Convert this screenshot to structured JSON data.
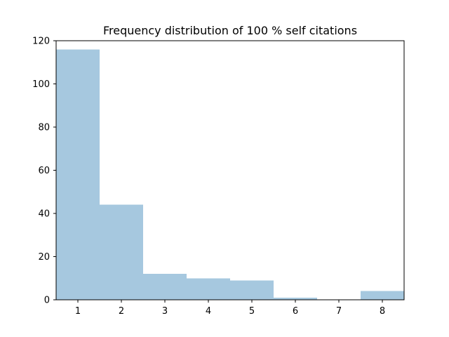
{
  "chart_data": {
    "type": "bar",
    "title": "Frequency distribution of 100 % self citations",
    "xlabel": "",
    "ylabel": "",
    "categories": [
      "1",
      "2",
      "3",
      "4",
      "5",
      "6",
      "7",
      "8"
    ],
    "x": [
      1,
      2,
      3,
      4,
      5,
      6,
      7,
      8
    ],
    "values": [
      116,
      44,
      12,
      10,
      9,
      1,
      0,
      4
    ],
    "xlim": [
      0.5,
      8.5
    ],
    "ylim": [
      0,
      120
    ],
    "yticks": [
      0,
      20,
      40,
      60,
      80,
      100,
      120
    ],
    "bar_color": "#a6c8df",
    "grid": false,
    "legend": "none"
  }
}
